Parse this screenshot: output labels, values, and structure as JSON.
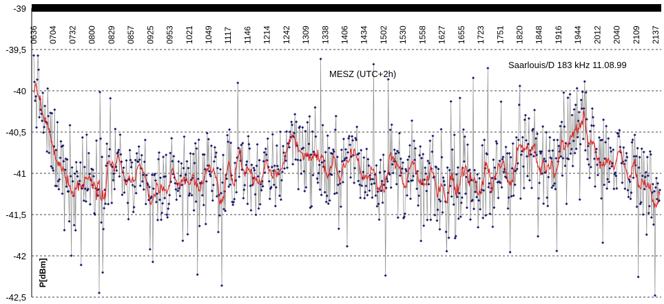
{
  "chart_data": {
    "type": "line",
    "title": "",
    "annotations": {
      "timezone": "MESZ  (UTC+2h)",
      "station": "Saarlouis/D  183 kHz  11.08.99"
    },
    "ylabel": "P[dBm]",
    "xlabel": "",
    "ylim": [
      -42.5,
      -39
    ],
    "y_ticks": [
      "-39",
      "-39,5",
      "-40",
      "-40,5",
      "-41",
      "-41,5",
      "-42",
      "-42,5"
    ],
    "y_tick_values": [
      -39,
      -39.5,
      -40,
      -40.5,
      -41,
      -41.5,
      -42,
      -42.5
    ],
    "x_ticks": [
      "0636",
      "0704",
      "0732",
      "0800",
      "0829",
      "0857",
      "0925",
      "0953",
      "1021",
      "1049",
      "1117",
      "1146",
      "1214",
      "1242",
      "1309",
      "1338",
      "1406",
      "1434",
      "1502",
      "1530",
      "1558",
      "1627",
      "1655",
      "1723",
      "1751",
      "1820",
      "1848",
      "1916",
      "1944",
      "2012",
      "2040",
      "2109",
      "2137"
    ],
    "x_range": [
      "06:36",
      "21:45"
    ],
    "grid": "horizontal dashed",
    "series": [
      {
        "style": "gray thin line with dark-blue diamond markers (raw samples)",
        "color": "#8c8c8c",
        "marker_color": "#1a1a6e",
        "sample_count": 900,
        "trend_values": [
          -39.85,
          -40.55,
          -40.95,
          -41.05,
          -41.1,
          -41.0,
          -40.95,
          -41.1,
          -41.25,
          -41.15,
          -41.1,
          -41.1,
          -41.05,
          -41.25,
          -41.05,
          -40.95,
          -41.05,
          -41.05,
          -40.55,
          -40.7,
          -40.9,
          -41.0,
          -40.85,
          -40.95,
          -41.05,
          -40.9,
          -41.0,
          -41.05,
          -41.15,
          -41.3,
          -41.1,
          -41.05,
          -41.2,
          -40.95,
          -40.95,
          -40.8,
          -40.9,
          -40.55,
          -40.5,
          -40.5,
          -40.75,
          -40.9,
          -41.0,
          -41.1,
          -41.25
        ]
      },
      {
        "style": "red moving-average line",
        "color": "#e02020",
        "trend_values": [
          -39.85,
          -40.55,
          -40.95,
          -41.05,
          -41.1,
          -41.0,
          -40.95,
          -41.1,
          -41.25,
          -41.15,
          -41.1,
          -41.1,
          -41.05,
          -41.25,
          -41.05,
          -40.95,
          -41.05,
          -41.05,
          -40.55,
          -40.7,
          -40.9,
          -41.0,
          -40.85,
          -40.95,
          -41.05,
          -40.9,
          -41.0,
          -41.05,
          -41.15,
          -41.3,
          -41.1,
          -41.05,
          -41.2,
          -40.95,
          -40.95,
          -40.8,
          -40.9,
          -40.55,
          -40.5,
          -40.5,
          -40.75,
          -40.9,
          -41.0,
          -41.1,
          -41.25
        ]
      }
    ]
  }
}
